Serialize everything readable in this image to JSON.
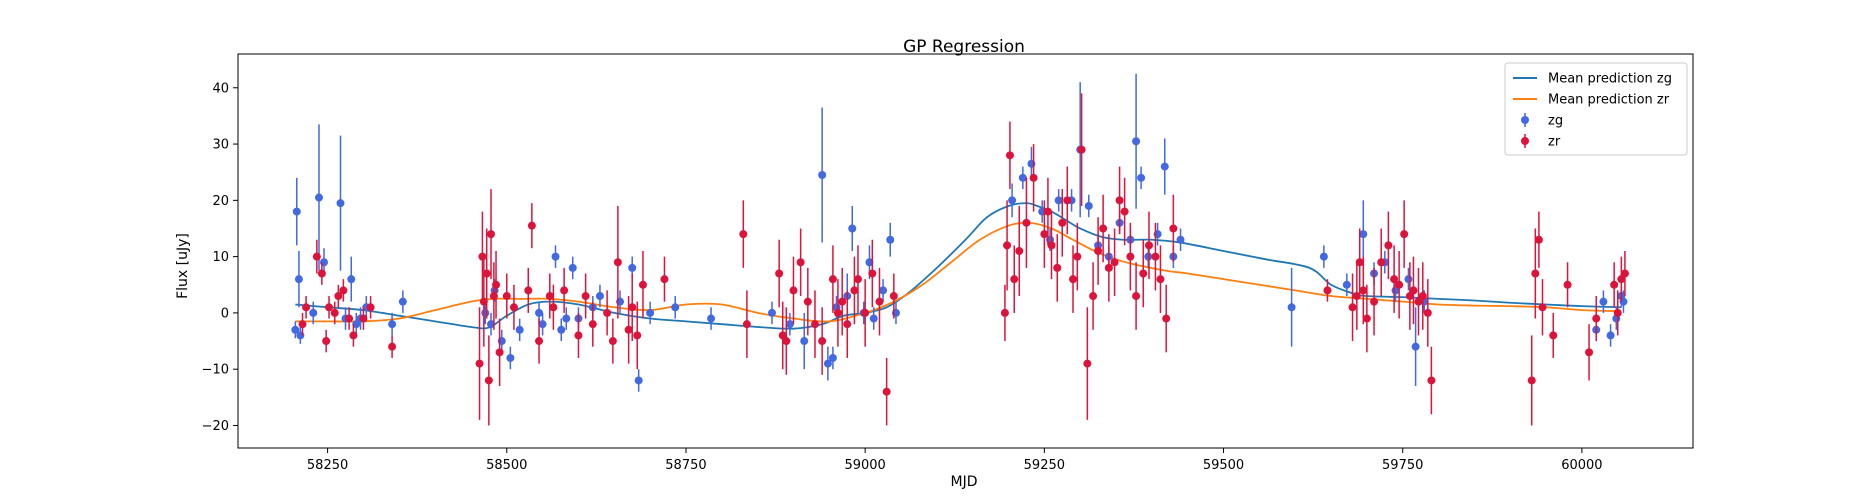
{
  "chart_data": {
    "type": "scatter",
    "title": "GP Regression",
    "xlabel": "MJD",
    "ylabel": "Flux [uJy]",
    "xlim": [
      58125,
      60155
    ],
    "ylim": [
      -24,
      46
    ],
    "xticks": [
      58250,
      58500,
      58750,
      59000,
      59250,
      59500,
      59750,
      60000
    ],
    "yticks": [
      -20,
      -10,
      0,
      10,
      20,
      30,
      40
    ],
    "grid": false,
    "legend": {
      "position": "top-right",
      "entries": [
        "Mean prediction zg",
        "Mean prediction zr",
        "zg",
        "zr"
      ]
    },
    "colors": {
      "mean_zg": "#1f77b4",
      "mean_zr": "#ff7f0e",
      "zg": "#4169e1",
      "zr": "#dc143c"
    },
    "lines": [
      {
        "name": "Mean prediction zg",
        "x": [
          58205,
          58250,
          58300,
          58350,
          58400,
          58450,
          58475,
          58500,
          58530,
          58560,
          58600,
          58650,
          58700,
          58750,
          58800,
          58850,
          58900,
          58940,
          58970,
          59000,
          59030,
          59060,
          59100,
          59140,
          59170,
          59200,
          59225,
          59240,
          59260,
          59280,
          59300,
          59330,
          59360,
          59400,
          59440,
          59500,
          59560,
          59620,
          59650,
          59680,
          59700,
          59750,
          59800,
          59850,
          59900,
          59950,
          60000,
          60055
        ],
        "y": [
          1.5,
          1.0,
          0.5,
          -0.5,
          -1.5,
          -2.5,
          -2.6,
          -0.5,
          1.5,
          2.0,
          1.5,
          0.0,
          -1.0,
          -1.5,
          -2.0,
          -2.5,
          -2.8,
          -2.0,
          -0.5,
          0.0,
          1.0,
          3.5,
          8.0,
          13.0,
          17.0,
          19.0,
          19.5,
          19.0,
          18.0,
          16.5,
          15.0,
          13.5,
          13.0,
          13.0,
          12.5,
          11.0,
          9.5,
          8.0,
          5.0,
          3.5,
          3.0,
          2.8,
          2.5,
          2.2,
          1.8,
          1.5,
          1.2,
          1.0
        ]
      },
      {
        "name": "Mean prediction zr",
        "x": [
          58205,
          58250,
          58300,
          58350,
          58400,
          58450,
          58480,
          58520,
          58560,
          58600,
          58650,
          58700,
          58750,
          58800,
          58850,
          58900,
          58950,
          59000,
          59040,
          59080,
          59120,
          59160,
          59200,
          59230,
          59260,
          59290,
          59320,
          59350,
          59380,
          59420,
          59450,
          59500,
          59550,
          59600,
          59650,
          59700,
          59750,
          59800,
          59850,
          59900,
          59950,
          60000,
          60055
        ],
        "y": [
          -1.5,
          -1.5,
          -1.5,
          -1.0,
          0.5,
          2.0,
          2.5,
          2.5,
          2.5,
          2.0,
          1.0,
          0.5,
          1.5,
          1.5,
          0.0,
          -1.0,
          -1.5,
          0.0,
          2.0,
          5.0,
          9.0,
          13.0,
          15.5,
          16.0,
          15.0,
          13.0,
          11.0,
          9.5,
          8.5,
          7.5,
          7.0,
          6.0,
          5.0,
          4.0,
          3.0,
          2.5,
          2.0,
          1.5,
          1.3,
          1.2,
          1.0,
          0.5,
          0.3
        ]
      }
    ],
    "series": [
      {
        "name": "zg",
        "x": [
          58205,
          58207,
          58210,
          58212,
          58230,
          58238,
          58245,
          58268,
          58275,
          58283,
          58290,
          58296,
          58304,
          58340,
          58355,
          58470,
          58478,
          58483,
          58493,
          58505,
          58518,
          58545,
          58550,
          58568,
          58576,
          58583,
          58592,
          58600,
          58620,
          58630,
          58658,
          58675,
          58684,
          58700,
          58735,
          58785,
          58870,
          58895,
          58915,
          58940,
          58948,
          58955,
          58960,
          58975,
          58982,
          58998,
          59006,
          59012,
          59025,
          59035,
          59043,
          59205,
          59220,
          59232,
          59247,
          59258,
          59270,
          59288,
          59300,
          59312,
          59325,
          59340,
          59355,
          59370,
          59378,
          59385,
          59395,
          59408,
          59418,
          59430,
          59440,
          59595,
          59640,
          59672,
          59695,
          59710,
          59725,
          59740,
          59758,
          59768,
          59780,
          60020,
          60030,
          60040,
          60048,
          60055,
          60058
        ],
        "y": [
          -3,
          18,
          6,
          -4,
          0,
          20.5,
          9,
          19.5,
          -1,
          6,
          -2,
          -1,
          1,
          -2,
          2,
          0,
          -2,
          4,
          -5,
          -8,
          -3,
          0,
          -2,
          10,
          -3,
          -1,
          8,
          -1,
          1,
          3,
          2,
          8,
          -12,
          0,
          1,
          -1,
          0,
          -2,
          -5,
          24.5,
          -9,
          -8,
          1,
          3,
          15,
          0,
          9,
          -1,
          4,
          13,
          0,
          20,
          24,
          26.5,
          18,
          13,
          20,
          20,
          29,
          19,
          12,
          10,
          16,
          13,
          30.5,
          24,
          10,
          14,
          26,
          10,
          13,
          1,
          10,
          5,
          14,
          7,
          9,
          4,
          6,
          -6,
          2,
          -3,
          2,
          -4,
          -1,
          3,
          2
        ],
        "yerr": [
          1.5,
          6,
          5,
          1.5,
          2,
          13,
          2.5,
          12,
          2,
          4,
          2,
          2,
          2,
          2,
          2,
          2,
          2,
          2,
          2,
          2,
          2,
          2,
          2,
          2,
          2,
          2,
          2,
          2,
          2,
          2,
          2,
          2,
          2,
          2,
          2,
          2,
          2,
          2,
          5,
          12,
          3,
          2,
          2,
          4,
          4,
          2,
          3,
          2,
          2,
          3,
          2,
          3,
          2,
          3,
          2,
          2,
          2,
          2,
          12,
          2,
          2,
          2,
          2,
          2,
          12,
          2,
          2,
          2,
          5,
          2,
          2,
          7,
          2,
          2,
          6,
          2,
          2,
          2,
          2,
          7,
          2,
          2,
          2,
          2,
          2,
          2,
          2
        ]
      },
      {
        "name": "zr",
        "x": [
          58215,
          58220,
          58235,
          58242,
          58248,
          58252,
          58260,
          58265,
          58272,
          58280,
          58286,
          58300,
          58310,
          58340,
          58462,
          58466,
          58468,
          58472,
          58475,
          58478,
          58482,
          58485,
          58490,
          58500,
          58510,
          58530,
          58535,
          58545,
          58560,
          58565,
          58580,
          58600,
          58610,
          58620,
          58640,
          58648,
          58655,
          58670,
          58675,
          58682,
          58690,
          58720,
          58830,
          58835,
          58880,
          58885,
          58890,
          58900,
          58910,
          58920,
          58930,
          58940,
          58955,
          58962,
          58968,
          58975,
          58985,
          58990,
          59000,
          59010,
          59020,
          59030,
          59040,
          59195,
          59198,
          59202,
          59208,
          59215,
          59225,
          59235,
          59250,
          59255,
          59260,
          59268,
          59275,
          59282,
          59290,
          59296,
          59302,
          59310,
          59318,
          59325,
          59332,
          59340,
          59348,
          59355,
          59362,
          59370,
          59378,
          59388,
          59396,
          59405,
          59412,
          59420,
          59430,
          59645,
          59680,
          59686,
          59690,
          59695,
          59700,
          59710,
          59720,
          59730,
          59738,
          59745,
          59752,
          59760,
          59765,
          59772,
          59778,
          59785,
          59790,
          59930,
          59935,
          59940,
          59945,
          59960,
          59980,
          60010,
          60020,
          60045,
          60050,
          60055,
          60060
        ],
        "y": [
          -2,
          1,
          10,
          7,
          -5,
          1,
          0,
          3,
          4,
          -1,
          -4,
          -1,
          1,
          -6,
          -9,
          10,
          2,
          7,
          -12,
          14,
          3,
          5,
          -7,
          3,
          1,
          4,
          15.5,
          -5,
          3,
          1,
          4,
          -4,
          3,
          -2,
          0,
          -5,
          9,
          -3,
          1,
          -4,
          5,
          6,
          14,
          -2,
          7,
          -4,
          -5,
          4,
          9,
          2,
          -2,
          -5,
          6,
          0,
          2,
          -2,
          4,
          6,
          0,
          7,
          2,
          -14,
          3,
          0,
          12,
          28,
          6,
          11,
          16,
          24,
          14,
          18,
          12,
          8,
          16,
          20,
          6,
          10,
          29,
          -9,
          3,
          11,
          15,
          8,
          9,
          20,
          18,
          10,
          3,
          7,
          12,
          10,
          6,
          -1,
          15,
          4,
          1,
          3,
          9,
          4,
          -1,
          2,
          9,
          12,
          6,
          5,
          14,
          3,
          4,
          2,
          3,
          0,
          -12,
          -12,
          7,
          13,
          1,
          -4,
          5,
          -7,
          -1,
          5,
          0,
          6,
          7
        ],
        "yerr": [
          2,
          2,
          3,
          2,
          2,
          2,
          2,
          2,
          2,
          2,
          2,
          2,
          2,
          2,
          10,
          8,
          8,
          8,
          8,
          8,
          6,
          6,
          6,
          4,
          4,
          4,
          4,
          4,
          4,
          4,
          4,
          4,
          4,
          4,
          4,
          4,
          10,
          6,
          6,
          6,
          6,
          4,
          6,
          6,
          6,
          6,
          6,
          6,
          6,
          6,
          6,
          6,
          6,
          6,
          6,
          6,
          6,
          6,
          6,
          6,
          6,
          6,
          4,
          5,
          8,
          6,
          6,
          8,
          8,
          6,
          6,
          6,
          6,
          6,
          6,
          6,
          6,
          6,
          10,
          10,
          6,
          6,
          6,
          6,
          6,
          6,
          6,
          6,
          6,
          6,
          6,
          6,
          6,
          6,
          6,
          2,
          6,
          6,
          6,
          6,
          6,
          6,
          6,
          6,
          6,
          6,
          6,
          6,
          6,
          6,
          6,
          6,
          6,
          8,
          8,
          5,
          5,
          4,
          4,
          5,
          4,
          4,
          4,
          4,
          4
        ]
      }
    ]
  }
}
